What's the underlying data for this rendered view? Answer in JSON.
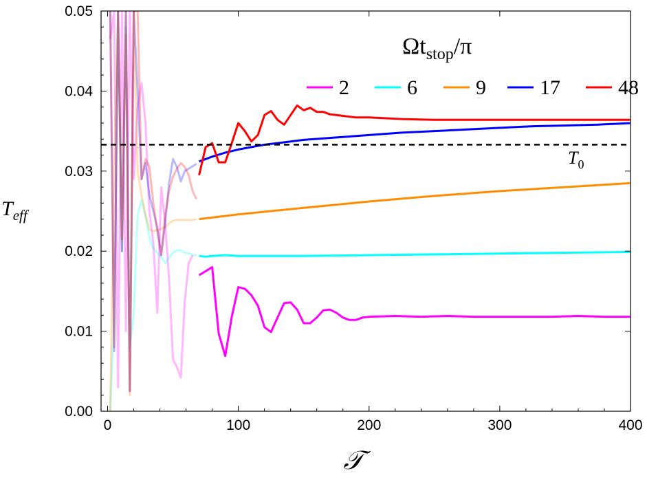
{
  "chart_data": {
    "type": "line",
    "xlabel": "𝒯",
    "ylabel": "T",
    "ylabel_sub": "eff",
    "xlim": [
      -5,
      400
    ],
    "ylim": [
      0.0,
      0.05
    ],
    "x_ticks": [
      0,
      100,
      200,
      300,
      400
    ],
    "x_tick_labels": [
      "0",
      "100",
      "200",
      "300",
      "400"
    ],
    "y_ticks": [
      0.0,
      0.01,
      0.02,
      0.03,
      0.04,
      0.05
    ],
    "y_tick_labels": [
      "0.00",
      "0.01",
      "0.02",
      "0.03",
      "0.04",
      "0.05"
    ],
    "legend": {
      "title_main": "Ωt",
      "title_sub": "stop",
      "title_tail": "/π",
      "placement": "top-right"
    },
    "reference_line": {
      "name": "T0",
      "label": "T",
      "label_sub": "0",
      "y": 0.0333,
      "style": "dashed",
      "color": "#000000"
    },
    "series": [
      {
        "name": "2",
        "color": "#ff00ff",
        "faded": {
          "x": [
            2,
            5,
            8,
            11,
            14,
            17,
            20,
            23,
            26,
            29,
            32,
            35,
            38,
            41,
            44,
            47,
            50,
            53,
            56,
            59,
            62,
            65
          ],
          "y": [
            0.0465,
            0.05,
            0.003,
            0.05,
            0.01,
            0.05,
            0.029,
            0.038,
            0.041,
            0.036,
            0.025,
            0.021,
            0.0123,
            0.028,
            0.0235,
            0.0165,
            0.0065,
            0.0055,
            0.0042,
            0.0137,
            0.0185,
            0.0195
          ]
        },
        "main": {
          "x": [
            70,
            75,
            80,
            85,
            90,
            95,
            100,
            105,
            110,
            115,
            120,
            125,
            130,
            135,
            140,
            145,
            150,
            155,
            160,
            165,
            170,
            175,
            180,
            185,
            190,
            195,
            200,
            220,
            240,
            260,
            280,
            300,
            320,
            340,
            360,
            380,
            400
          ],
          "y": [
            0.017,
            0.0175,
            0.018,
            0.0097,
            0.0069,
            0.0118,
            0.0155,
            0.0153,
            0.0145,
            0.0132,
            0.0105,
            0.0099,
            0.0117,
            0.0135,
            0.0136,
            0.0127,
            0.011,
            0.011,
            0.0117,
            0.0126,
            0.0127,
            0.0123,
            0.0117,
            0.0114,
            0.0114,
            0.0117,
            0.0118,
            0.0119,
            0.0118,
            0.0119,
            0.0118,
            0.0118,
            0.0118,
            0.0118,
            0.0119,
            0.0118,
            0.0118
          ]
        }
      },
      {
        "name": "6",
        "color": "#00ffff",
        "faded": {
          "x": [
            2,
            5,
            8,
            11,
            14,
            17,
            20,
            23,
            26,
            29,
            32,
            35,
            38,
            41,
            44,
            47,
            50,
            53,
            56,
            59,
            62,
            65,
            68
          ],
          "y": [
            0.0,
            0.012,
            0.05,
            0.02,
            0.048,
            0.008,
            0.0122,
            0.0245,
            0.0264,
            0.0244,
            0.0217,
            0.0203,
            0.0198,
            0.0192,
            0.0185,
            0.0192,
            0.0198,
            0.0201,
            0.0201,
            0.0198,
            0.0197,
            0.0195,
            0.0195
          ]
        },
        "main": {
          "x": [
            70,
            75,
            80,
            90,
            100,
            120,
            150,
            200,
            250,
            300,
            350,
            400
          ],
          "y": [
            0.0194,
            0.0193,
            0.0194,
            0.0195,
            0.0194,
            0.0194,
            0.0194,
            0.0195,
            0.0196,
            0.0197,
            0.0198,
            0.0199
          ]
        }
      },
      {
        "name": "9",
        "color": "#ff8c00",
        "faded": {
          "x": [
            2,
            5,
            8,
            11,
            14,
            17,
            20,
            23,
            26,
            29,
            32,
            35,
            38,
            41,
            44,
            47,
            50,
            53,
            56,
            59,
            62,
            65,
            68
          ],
          "y": [
            0.0,
            0.03,
            0.05,
            0.02,
            0.047,
            0.002,
            0.05,
            0.03,
            0.027,
            0.0245,
            0.0227,
            0.0225,
            0.0226,
            0.0228,
            0.023,
            0.0235,
            0.0238,
            0.0239,
            0.0239,
            0.0239,
            0.0239,
            0.0239,
            0.024
          ]
        },
        "main": {
          "x": [
            70,
            100,
            150,
            200,
            250,
            300,
            350,
            400
          ],
          "y": [
            0.024,
            0.0246,
            0.0254,
            0.0262,
            0.0269,
            0.0275,
            0.028,
            0.0285
          ]
        }
      },
      {
        "name": "17",
        "color": "#0000ff",
        "faded": {
          "x": [
            2,
            5,
            8,
            11,
            14,
            17,
            20,
            23,
            26,
            29,
            32,
            35,
            38,
            41,
            44,
            47,
            50,
            53,
            56,
            59,
            62,
            65,
            68
          ],
          "y": [
            0.05,
            0.0075,
            0.05,
            0.02,
            0.05,
            0.0025,
            0.05,
            0.04,
            0.029,
            0.031,
            0.027,
            0.025,
            0.0229,
            0.0195,
            0.0235,
            0.0285,
            0.0315,
            0.0305,
            0.0287,
            0.03,
            0.0303,
            0.0306,
            0.0309
          ]
        },
        "main": {
          "x": [
            70,
            80,
            90,
            100,
            110,
            120,
            130,
            140,
            150,
            175,
            200,
            225,
            250,
            275,
            300,
            325,
            350,
            375,
            400
          ],
          "y": [
            0.0312,
            0.0318,
            0.0323,
            0.0327,
            0.033,
            0.0333,
            0.0335,
            0.0337,
            0.0339,
            0.0342,
            0.0345,
            0.0348,
            0.035,
            0.0352,
            0.0354,
            0.0356,
            0.0357,
            0.0358,
            0.036
          ]
        }
      },
      {
        "name": "48",
        "color": "#ff0000",
        "faded": {
          "x": [
            2,
            5,
            8,
            11,
            14,
            17,
            20,
            23,
            26,
            29,
            32,
            35,
            38,
            41,
            44,
            47,
            50,
            53,
            56,
            59,
            62,
            65,
            68
          ],
          "y": [
            0.05,
            0.008,
            0.05,
            0.0215,
            0.05,
            0.0025,
            0.05,
            0.05,
            0.029,
            0.0315,
            0.0305,
            0.026,
            0.0225,
            0.0195,
            0.0245,
            0.0275,
            0.0293,
            0.0303,
            0.031,
            0.0305,
            0.0295,
            0.0275,
            0.0265
          ]
        },
        "main": {
          "x": [
            70,
            75,
            80,
            85,
            90,
            95,
            100,
            105,
            110,
            115,
            120,
            125,
            130,
            135,
            140,
            145,
            150,
            155,
            160,
            165,
            170,
            175,
            180,
            190,
            200,
            225,
            250,
            275,
            300,
            325,
            350,
            375,
            400
          ],
          "y": [
            0.0295,
            0.033,
            0.0335,
            0.0311,
            0.0311,
            0.0335,
            0.036,
            0.035,
            0.0337,
            0.0345,
            0.037,
            0.0375,
            0.0364,
            0.0358,
            0.037,
            0.0382,
            0.0376,
            0.0379,
            0.0374,
            0.0374,
            0.0371,
            0.037,
            0.0369,
            0.0367,
            0.0367,
            0.0365,
            0.0364,
            0.0364,
            0.0364,
            0.0364,
            0.0364,
            0.0364,
            0.0364
          ]
        }
      }
    ]
  }
}
